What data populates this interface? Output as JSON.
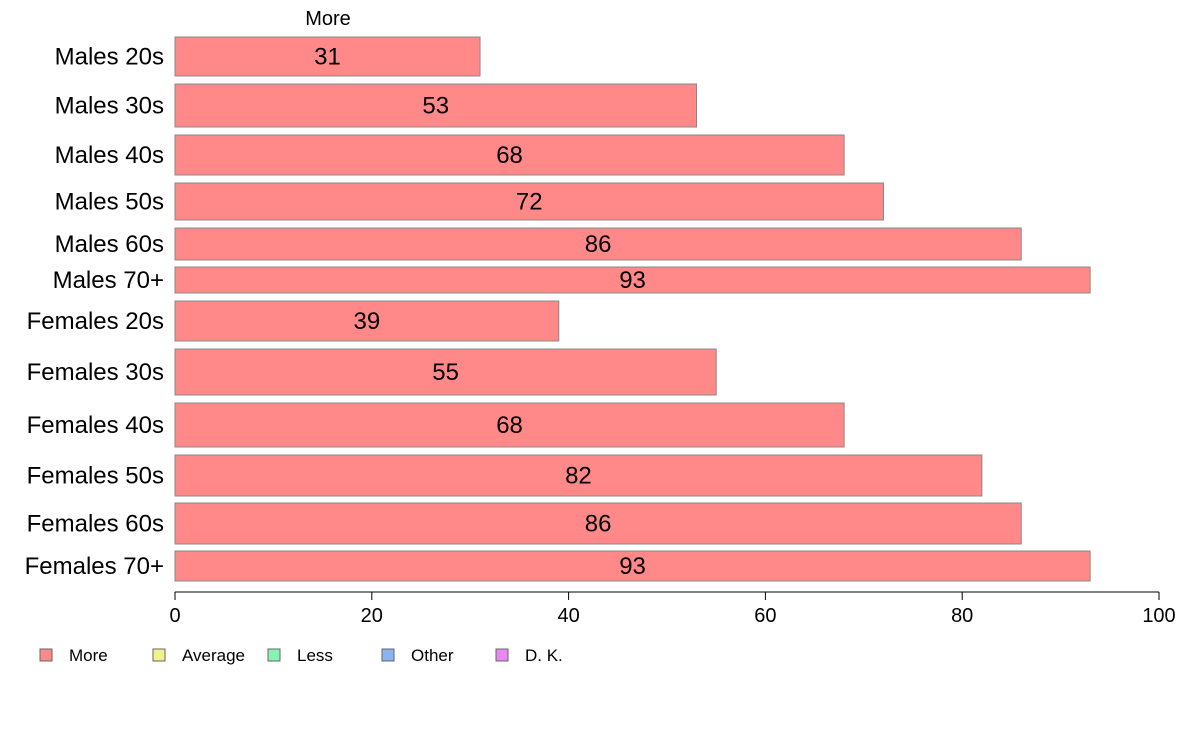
{
  "chart_data": {
    "type": "bar",
    "orientation": "horizontal",
    "stacked": true,
    "column_header": "More",
    "categories": [
      "Males 20s",
      "Males 30s",
      "Males 40s",
      "Males 50s",
      "Males 60s",
      "Males 70+",
      "Females 20s",
      "Females 30s",
      "Females 40s",
      "Females 50s",
      "Females 60s",
      "Females 70+"
    ],
    "series": [
      {
        "name": "More",
        "values": [
          31,
          53,
          68,
          72,
          86,
          93,
          39,
          55,
          68,
          82,
          86,
          93
        ],
        "color": "#ff8888"
      }
    ],
    "data_labels": [
      "31",
      "53",
      "68",
      "72",
      "86",
      "93",
      "39",
      "55",
      "68",
      "82",
      "86",
      "93"
    ],
    "xlim": [
      0,
      100
    ],
    "xticks": [
      "0",
      "20",
      "40",
      "60",
      "80",
      "100"
    ],
    "legend": {
      "placement": "bottom-left",
      "items": [
        {
          "label": "More",
          "color": "#ff8888"
        },
        {
          "label": "Average",
          "color": "#f2f28c"
        },
        {
          "label": "Less",
          "color": "#88f2b4"
        },
        {
          "label": "Other",
          "color": "#88b4f2"
        },
        {
          "label": "D. K.",
          "color": "#e888f2"
        }
      ]
    }
  }
}
